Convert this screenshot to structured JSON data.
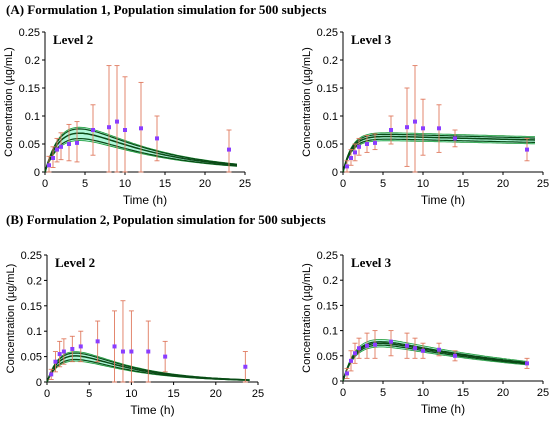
{
  "headings": {
    "a": "(A) Formulation 1, Population simulation for 500 subjects",
    "b": "(B) Formulation 2, Population simulation for 500 subjects"
  },
  "colors": {
    "band": "#79f2c2",
    "band_edge": "#1e9a3a",
    "median": "#0a4a16",
    "obs": "#8a3dff",
    "error": "#e07a5f"
  },
  "chart_data": [
    {
      "type": "line",
      "id": "a-level2",
      "title": "Level 2",
      "xlabel": "Time (h)",
      "ylabel": "Concentration (µg/mL)",
      "xlim": [
        0,
        25
      ],
      "ylim": [
        0,
        0.25
      ],
      "xticks": [
        0,
        5,
        10,
        15,
        20,
        25
      ],
      "yticks": [
        0,
        0.05,
        0.1,
        0.15,
        0.2,
        0.25
      ],
      "yticklabels": [
        "0",
        "0.05",
        "0.1",
        "0.15",
        "0.2",
        "0.25"
      ],
      "prediction": {
        "ka": 0.45,
        "ke": 0.1,
        "mid": 0.137,
        "lo": 0.118,
        "hi": 0.152,
        "band_lo": 0.111,
        "band_hi": 0.158,
        "tmax": 24
      },
      "observed": [
        {
          "x": 0.5,
          "y": 0.012,
          "lo": 0.0,
          "hi": 0.028
        },
        {
          "x": 1,
          "y": 0.025,
          "lo": 0.008,
          "hi": 0.045
        },
        {
          "x": 1.5,
          "y": 0.04,
          "lo": 0.018,
          "hi": 0.06
        },
        {
          "x": 2,
          "y": 0.045,
          "lo": 0.022,
          "hi": 0.07
        },
        {
          "x": 3,
          "y": 0.05,
          "lo": 0.02,
          "hi": 0.085
        },
        {
          "x": 4,
          "y": 0.052,
          "lo": 0.018,
          "hi": 0.09
        },
        {
          "x": 6,
          "y": 0.075,
          "lo": 0.03,
          "hi": 0.12
        },
        {
          "x": 8,
          "y": 0.08,
          "lo": -0.03,
          "hi": 0.19
        },
        {
          "x": 9,
          "y": 0.09,
          "lo": -0.01,
          "hi": 0.19
        },
        {
          "x": 10,
          "y": 0.075,
          "lo": -0.02,
          "hi": 0.17
        },
        {
          "x": 12,
          "y": 0.078,
          "lo": -0.005,
          "hi": 0.16
        },
        {
          "x": 14,
          "y": 0.06,
          "lo": 0.02,
          "hi": 0.1
        },
        {
          "x": 23,
          "y": 0.04,
          "lo": 0.0,
          "hi": 0.075
        }
      ]
    },
    {
      "type": "line",
      "id": "a-level3",
      "title": "Level 3",
      "xlabel": "Time (h)",
      "ylabel": "Concentration (µg/mL)",
      "xlim": [
        0,
        25
      ],
      "ylim": [
        0,
        0.25
      ],
      "xticks": [
        0,
        5,
        10,
        15,
        20,
        25
      ],
      "yticks": [
        0,
        0.05,
        0.1,
        0.15,
        0.2,
        0.25
      ],
      "yticklabels": [
        "0",
        "0.05",
        "0.1",
        "0.15",
        "0.2",
        "0.25"
      ],
      "prediction": {
        "ka": 0.9,
        "ke": 0.006,
        "mid": 0.066,
        "lo": 0.061,
        "hi": 0.07,
        "band_lo": 0.058,
        "band_hi": 0.073,
        "tmax": 24
      },
      "observed": [
        {
          "x": 0.5,
          "y": 0.01,
          "lo": 0.0,
          "hi": 0.02
        },
        {
          "x": 1,
          "y": 0.025,
          "lo": 0.012,
          "hi": 0.04
        },
        {
          "x": 1.5,
          "y": 0.035,
          "lo": 0.02,
          "hi": 0.05
        },
        {
          "x": 2,
          "y": 0.045,
          "lo": 0.03,
          "hi": 0.06
        },
        {
          "x": 3,
          "y": 0.05,
          "lo": 0.035,
          "hi": 0.065
        },
        {
          "x": 4,
          "y": 0.052,
          "lo": 0.04,
          "hi": 0.068
        },
        {
          "x": 6,
          "y": 0.075,
          "lo": 0.05,
          "hi": 0.1
        },
        {
          "x": 8,
          "y": 0.08,
          "lo": 0.01,
          "hi": 0.15
        },
        {
          "x": 9,
          "y": 0.09,
          "lo": 0.0,
          "hi": 0.19
        },
        {
          "x": 10,
          "y": 0.078,
          "lo": 0.03,
          "hi": 0.13
        },
        {
          "x": 12,
          "y": 0.078,
          "lo": 0.035,
          "hi": 0.12
        },
        {
          "x": 14,
          "y": 0.06,
          "lo": 0.045,
          "hi": 0.075
        },
        {
          "x": 23,
          "y": 0.04,
          "lo": 0.02,
          "hi": 0.06
        }
      ]
    },
    {
      "type": "line",
      "id": "b-level2",
      "title": "Level 2",
      "xlabel": "Time (h)",
      "ylabel": "Concentration (µg/mL)",
      "xlim": [
        0,
        25
      ],
      "ylim": [
        0,
        0.25
      ],
      "xticks": [
        0,
        5,
        10,
        15,
        20,
        25
      ],
      "yticks": [
        0,
        0.05,
        0.1,
        0.15,
        0.2,
        0.25
      ],
      "yticklabels": [
        "0",
        "0.05",
        "0.1",
        "0.15",
        "0.2",
        "0.25"
      ],
      "prediction": {
        "ka": 0.55,
        "ke": 0.14,
        "mid": 0.11,
        "lo": 0.095,
        "hi": 0.122,
        "band_lo": 0.088,
        "band_hi": 0.128,
        "tmax": 24
      },
      "observed": [
        {
          "x": 0.5,
          "y": 0.015,
          "lo": 0.005,
          "hi": 0.025
        },
        {
          "x": 1,
          "y": 0.04,
          "lo": 0.02,
          "hi": 0.06
        },
        {
          "x": 1.5,
          "y": 0.055,
          "lo": 0.03,
          "hi": 0.08
        },
        {
          "x": 2,
          "y": 0.06,
          "lo": 0.035,
          "hi": 0.085
        },
        {
          "x": 3,
          "y": 0.065,
          "lo": 0.04,
          "hi": 0.09
        },
        {
          "x": 4,
          "y": 0.07,
          "lo": 0.04,
          "hi": 0.1
        },
        {
          "x": 6,
          "y": 0.08,
          "lo": 0.04,
          "hi": 0.12
        },
        {
          "x": 8,
          "y": 0.07,
          "lo": -0.01,
          "hi": 0.14
        },
        {
          "x": 9,
          "y": 0.06,
          "lo": -0.04,
          "hi": 0.16
        },
        {
          "x": 10,
          "y": 0.06,
          "lo": -0.02,
          "hi": 0.14
        },
        {
          "x": 12,
          "y": 0.06,
          "lo": 0.0,
          "hi": 0.12
        },
        {
          "x": 14,
          "y": 0.05,
          "lo": 0.02,
          "hi": 0.08
        },
        {
          "x": 23.5,
          "y": 0.03,
          "lo": 0.0,
          "hi": 0.06
        }
      ]
    },
    {
      "type": "line",
      "id": "b-level3",
      "title": "Level  3",
      "xlabel": "Time (h)",
      "ylabel": "Concentration (µg/mL)",
      "xlim": [
        0,
        25
      ],
      "ylim": [
        0,
        0.25
      ],
      "xticks": [
        0,
        5,
        10,
        15,
        20,
        25
      ],
      "yticks": [
        0,
        0.05,
        0.1,
        0.15,
        0.2,
        0.25
      ],
      "yticklabels": [
        "0",
        "0.05",
        "0.1",
        "0.15",
        "0.2",
        "0.25"
      ],
      "prediction": {
        "ka": 0.6,
        "ke": 0.045,
        "mid": 0.1,
        "lo": 0.095,
        "hi": 0.104,
        "band_lo": 0.09,
        "band_hi": 0.11,
        "tmax": 23
      },
      "observed": [
        {
          "x": 0.5,
          "y": 0.015,
          "lo": 0.005,
          "hi": 0.025
        },
        {
          "x": 1,
          "y": 0.04,
          "lo": 0.02,
          "hi": 0.06
        },
        {
          "x": 1.5,
          "y": 0.055,
          "lo": 0.035,
          "hi": 0.075
        },
        {
          "x": 2,
          "y": 0.065,
          "lo": 0.045,
          "hi": 0.085
        },
        {
          "x": 3,
          "y": 0.07,
          "lo": 0.045,
          "hi": 0.095
        },
        {
          "x": 4,
          "y": 0.072,
          "lo": 0.045,
          "hi": 0.1
        },
        {
          "x": 6,
          "y": 0.078,
          "lo": 0.05,
          "hi": 0.1
        },
        {
          "x": 8,
          "y": 0.07,
          "lo": 0.045,
          "hi": 0.095
        },
        {
          "x": 9,
          "y": 0.065,
          "lo": 0.045,
          "hi": 0.085
        },
        {
          "x": 10,
          "y": 0.06,
          "lo": 0.045,
          "hi": 0.075
        },
        {
          "x": 12,
          "y": 0.062,
          "lo": 0.05,
          "hi": 0.075
        },
        {
          "x": 14,
          "y": 0.05,
          "lo": 0.04,
          "hi": 0.06
        },
        {
          "x": 23,
          "y": 0.035,
          "lo": 0.025,
          "hi": 0.045
        }
      ]
    }
  ]
}
